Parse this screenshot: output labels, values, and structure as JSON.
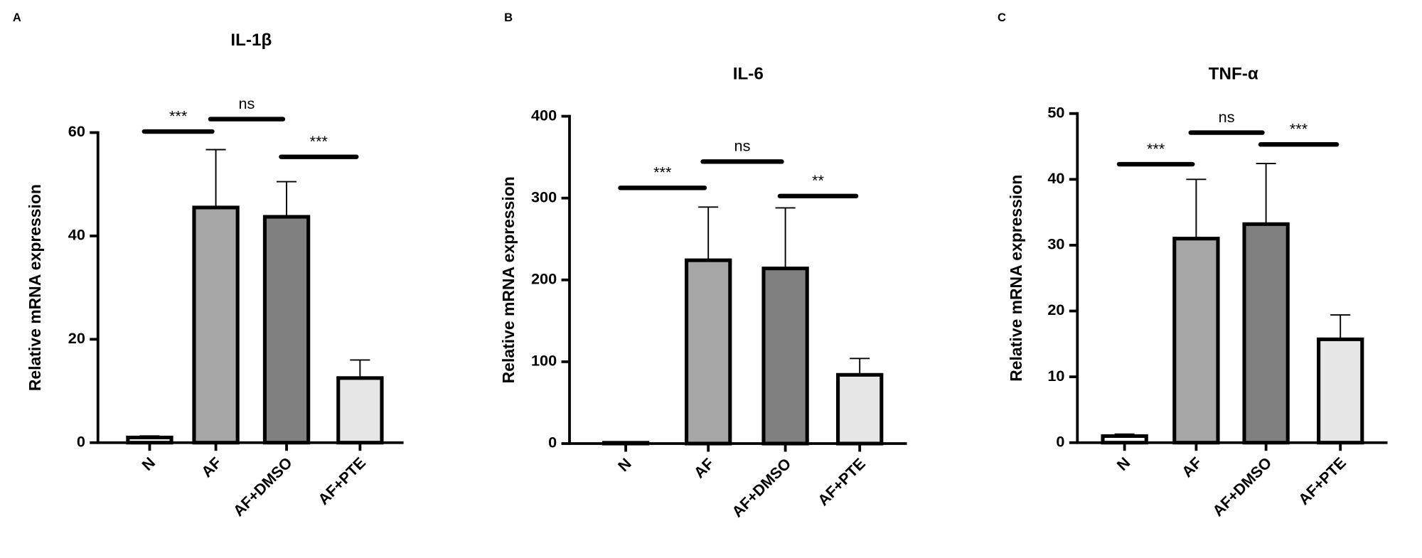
{
  "chart_data": [
    {
      "type": "bar",
      "panel": "A",
      "title": "IL-1β",
      "ylabel": "Relative mRNA expression",
      "categories": [
        "N",
        "AF",
        "AF+DMSO",
        "AF+PTE"
      ],
      "values": [
        1,
        45.5,
        43.7,
        12.5
      ],
      "errors": [
        0.3,
        11.2,
        6.8,
        3.5
      ],
      "colors": [
        "#ffffff",
        "#a6a6a6",
        "#808080",
        "#e6e6e6"
      ],
      "ylim": [
        0,
        60
      ],
      "yticks": [
        0,
        20,
        40,
        60
      ],
      "annotations": [
        {
          "text": "***",
          "y": 60.2
        },
        {
          "text": "ns",
          "y": 62.6
        },
        {
          "text": "***",
          "y": 55.3
        }
      ]
    },
    {
      "type": "bar",
      "panel": "B",
      "title": "IL-6",
      "ylabel": "Relative mRNA expression",
      "categories": [
        "N",
        "AF",
        "AF+DMSO",
        "AF+PTE"
      ],
      "values": [
        1,
        224,
        214,
        84
      ],
      "errors": [
        0.3,
        65,
        74,
        20
      ],
      "colors": [
        "#ffffff",
        "#a6a6a6",
        "#808080",
        "#e6e6e6"
      ],
      "ylim": [
        0,
        400
      ],
      "yticks": [
        0,
        100,
        200,
        300,
        400
      ],
      "annotations": [
        {
          "text": "***",
          "y": 312.5
        },
        {
          "text": "ns",
          "y": 344.6
        },
        {
          "text": "**",
          "y": 302.5
        }
      ]
    },
    {
      "type": "bar",
      "panel": "C",
      "title": "TNF-α",
      "ylabel": "Relative mRNA expression",
      "categories": [
        "N",
        "AF",
        "AF+DMSO",
        "AF+PTE"
      ],
      "values": [
        1,
        31,
        33.2,
        15.7
      ],
      "errors": [
        0.3,
        9,
        9.2,
        3.7
      ],
      "colors": [
        "#ffffff",
        "#a6a6a6",
        "#808080",
        "#e6e6e6"
      ],
      "ylim": [
        0,
        50
      ],
      "yticks": [
        0,
        10,
        20,
        30,
        40,
        50
      ],
      "annotations": [
        {
          "text": "***",
          "y": 42.3
        },
        {
          "text": "ns",
          "y": 47.1
        },
        {
          "text": "***",
          "y": 45.3
        }
      ]
    }
  ]
}
